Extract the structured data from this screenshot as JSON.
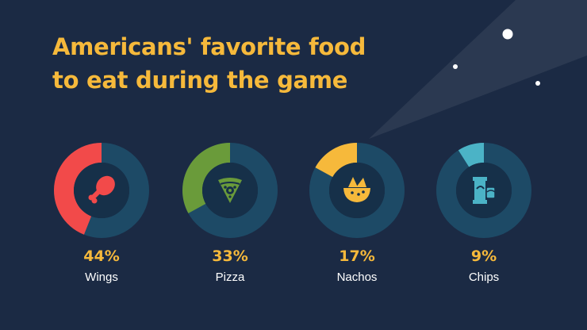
{
  "title_lines": [
    "Americans' favorite food",
    "to eat during the game"
  ],
  "colors": {
    "background": "#1b2a44",
    "track": "#1d4a66",
    "inner": "#163049",
    "title": "#f6b93b",
    "label": "#ffffff"
  },
  "chart_data": {
    "type": "pie",
    "title": "Americans' favorite food to eat during the game",
    "style": "donut",
    "unit": "%",
    "slices": [
      {
        "name": "Wings",
        "value": 44,
        "display": "44%",
        "color": "#f24a4a",
        "icon": "chicken-leg-icon"
      },
      {
        "name": "Pizza",
        "value": 33,
        "display": "33%",
        "color": "#6a9b3a",
        "icon": "pizza-slice-icon"
      },
      {
        "name": "Nachos",
        "value": 17,
        "display": "17%",
        "color": "#f6b93b",
        "icon": "nachos-bowl-icon"
      },
      {
        "name": "Chips",
        "value": 9,
        "display": "9%",
        "color": "#4bb3c6",
        "icon": "chips-bag-icon"
      }
    ]
  }
}
